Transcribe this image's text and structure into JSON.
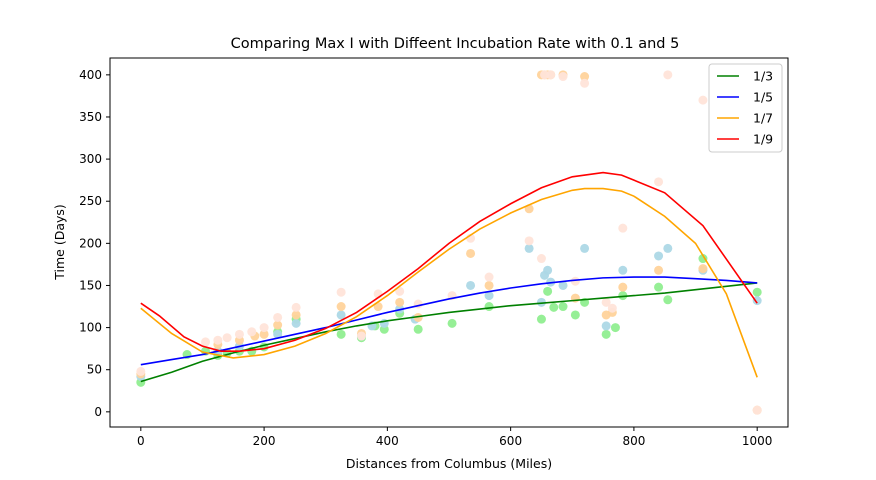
{
  "chart_data": {
    "type": "line",
    "title": "Comparing Max I with Diffeent Incubation Rate with 0.1 and 5",
    "xlabel": "Distances from Columbus (Miles)",
    "ylabel": "Time (Days)",
    "xlim": [
      -50,
      1050
    ],
    "ylim": [
      -18,
      420
    ],
    "xticks": [
      0,
      200,
      400,
      600,
      800,
      1000
    ],
    "yticks": [
      0,
      50,
      100,
      150,
      200,
      250,
      300,
      350,
      400
    ],
    "legend_position": "top-right",
    "grid": false,
    "series": [
      {
        "name": "1/3",
        "color": "#008000",
        "dot_color": "#90ee90",
        "curve_x": [
          0,
          50,
          100,
          150,
          200,
          250,
          300,
          350,
          400,
          450,
          500,
          550,
          600,
          650,
          700,
          750,
          800,
          850,
          900,
          950,
          1000
        ],
        "curve_y": [
          36,
          47,
          60,
          70,
          79,
          87,
          95,
          102,
          108,
          113,
          118,
          122,
          126,
          129,
          132,
          135,
          138,
          141,
          145,
          149,
          153
        ],
        "points_x": [
          0,
          75,
          105,
          125,
          140,
          160,
          180,
          200,
          222,
          252,
          325,
          358,
          380,
          395,
          420,
          450,
          505,
          565,
          650,
          660,
          670,
          685,
          705,
          720,
          755,
          770,
          782,
          840,
          855,
          912,
          1000
        ],
        "points_y": [
          35,
          68,
          72,
          67,
          70,
          72,
          72,
          77,
          95,
          110,
          92,
          88,
          102,
          98,
          117,
          98,
          105,
          125,
          110,
          143,
          124,
          125,
          115,
          130,
          92,
          100,
          138,
          148,
          133,
          182,
          142
        ]
      },
      {
        "name": "1/5",
        "color": "#0000ff",
        "dot_color": "#add8e6",
        "curve_x": [
          0,
          50,
          100,
          150,
          200,
          250,
          300,
          350,
          400,
          450,
          500,
          550,
          600,
          650,
          700,
          750,
          800,
          850,
          900,
          950,
          1000
        ],
        "curve_y": [
          56,
          62,
          68,
          76,
          84,
          92,
          100,
          109,
          118,
          126,
          134,
          141,
          147,
          152,
          156,
          159,
          160,
          160,
          158,
          156,
          153
        ],
        "points_x": [
          0,
          125,
          160,
          222,
          252,
          325,
          358,
          375,
          395,
          420,
          445,
          535,
          565,
          630,
          650,
          655,
          660,
          665,
          685,
          720,
          755,
          782,
          840,
          855,
          912,
          1000
        ],
        "points_y": [
          42,
          72,
          78,
          92,
          105,
          115,
          90,
          102,
          105,
          122,
          110,
          150,
          138,
          194,
          130,
          162,
          168,
          154,
          150,
          194,
          102,
          168,
          185,
          194,
          168,
          132
        ]
      },
      {
        "name": "1/7",
        "color": "#ffa500",
        "dot_color": "#ffd39b",
        "curve_x": [
          0,
          50,
          100,
          150,
          200,
          250,
          300,
          350,
          400,
          450,
          500,
          550,
          600,
          650,
          700,
          720,
          750,
          780,
          800,
          850,
          900,
          950,
          1000
        ],
        "curve_y": [
          123,
          93,
          71,
          64,
          68,
          78,
          93,
          113,
          138,
          166,
          193,
          217,
          236,
          252,
          263,
          265,
          265,
          262,
          256,
          232,
          200,
          140,
          41
        ],
        "points_x": [
          0,
          125,
          160,
          185,
          200,
          222,
          252,
          325,
          358,
          385,
          420,
          450,
          535,
          565,
          630,
          650,
          655,
          660,
          665,
          685,
          705,
          720,
          755,
          765,
          782,
          840,
          912,
          1000
        ],
        "points_y": [
          45,
          80,
          85,
          90,
          92,
          103,
          115,
          125,
          93,
          125,
          130,
          112,
          188,
          150,
          241,
          400,
          400,
          400,
          400,
          400,
          135,
          398,
          115,
          118,
          148,
          168,
          170,
          2
        ]
      },
      {
        "name": "1/9",
        "color": "#ff0000",
        "dot_color": "#ffe4d9",
        "curve_x": [
          0,
          30,
          70,
          100,
          130,
          160,
          200,
          250,
          300,
          350,
          400,
          450,
          500,
          550,
          600,
          650,
          700,
          750,
          780,
          800,
          850,
          912,
          1000
        ],
        "curve_y": [
          129,
          114,
          89,
          78,
          72,
          72,
          75,
          85,
          99,
          118,
          143,
          170,
          200,
          226,
          247,
          266,
          279,
          284,
          281,
          275,
          260,
          221,
          129
        ],
        "points_x": [
          0,
          105,
          125,
          140,
          160,
          180,
          200,
          222,
          252,
          325,
          358,
          385,
          420,
          450,
          505,
          535,
          565,
          630,
          650,
          655,
          665,
          685,
          705,
          720,
          755,
          765,
          782,
          840,
          855,
          912,
          1000
        ],
        "points_y": [
          48,
          83,
          85,
          88,
          92,
          95,
          100,
          112,
          124,
          142,
          90,
          140,
          143,
          128,
          138,
          206,
          160,
          203,
          182,
          400,
          400,
          398,
          155,
          390,
          130,
          123,
          218,
          273,
          400,
          370,
          2
        ]
      }
    ]
  }
}
